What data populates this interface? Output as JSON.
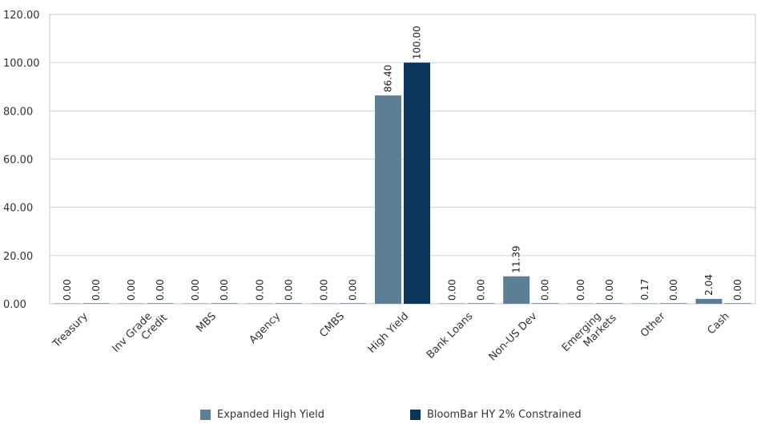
{
  "chart_data": {
    "type": "bar",
    "categories": [
      "Treasury",
      "Inv Grade Credit",
      "MBS",
      "Agency",
      "CMBS",
      "High Yield",
      "Bank Loans",
      "Non-US Dev",
      "Emerging Markets",
      "Other",
      "Cash"
    ],
    "category_lines": [
      [
        "Treasury"
      ],
      [
        "Inv Grade",
        "Credit"
      ],
      [
        "MBS"
      ],
      [
        "Agency"
      ],
      [
        "CMBS"
      ],
      [
        "High Yield"
      ],
      [
        "Bank Loans"
      ],
      [
        "Non-US Dev"
      ],
      [
        "Emerging",
        "Markets"
      ],
      [
        "Other"
      ],
      [
        "Cash"
      ]
    ],
    "series": [
      {
        "name": "Expanded High Yield",
        "color": "#5d7f93",
        "values": [
          0.0,
          0.0,
          0.0,
          0.0,
          0.0,
          86.4,
          0.0,
          11.39,
          0.0,
          0.17,
          2.04
        ],
        "labels": [
          "0.00",
          "0.00",
          "0.00",
          "0.00",
          "0.00",
          "86.40",
          "0.00",
          "11.39",
          "0.00",
          "0.17",
          "2.04"
        ]
      },
      {
        "name": "BloomBar HY 2% Constrained",
        "color": "#0b3558",
        "values": [
          0.0,
          0.0,
          0.0,
          0.0,
          0.0,
          100.0,
          0.0,
          0.0,
          0.0,
          0.0,
          0.0
        ],
        "labels": [
          "0.00",
          "0.00",
          "0.00",
          "0.00",
          "0.00",
          "100.00",
          "0.00",
          "0.00",
          "0.00",
          "0.00",
          "0.00"
        ]
      }
    ],
    "yticks": [
      "0.00",
      "20.00",
      "40.00",
      "60.00",
      "80.00",
      "100.00",
      "120.00"
    ],
    "ylim": [
      0,
      120
    ],
    "grid": true,
    "legend": "bottom-center",
    "title": "",
    "xlabel": "",
    "ylabel": ""
  }
}
